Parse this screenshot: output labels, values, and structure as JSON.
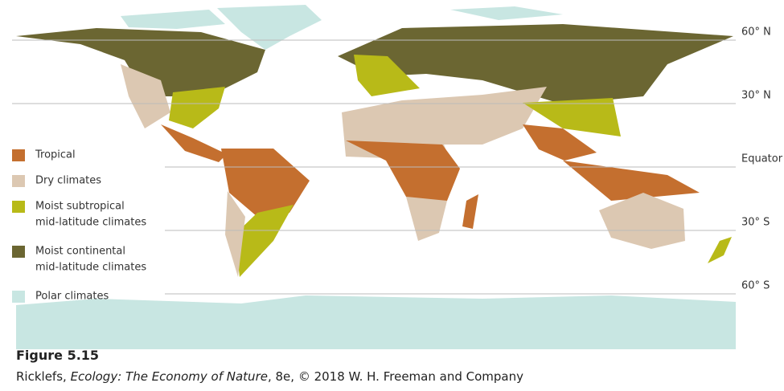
{
  "legend": [
    {
      "lines": [
        "Tropical"
      ],
      "color": "#c46f2f"
    },
    {
      "lines": [
        "Dry climates"
      ],
      "color": "#dcc8b2"
    },
    {
      "lines": [
        "Moist subtropical",
        "mid-latitude climates"
      ],
      "color": "#b8ba18"
    },
    {
      "lines": [
        "Moist continental",
        "mid-latitude climates"
      ],
      "color": "#6b6632"
    },
    {
      "lines": [
        "Polar climates"
      ],
      "color": "#c8e6e2"
    }
  ],
  "latitude_lines": [
    "60° N",
    "30° N",
    "Equator",
    "30° S",
    "60° S"
  ],
  "caption": {
    "figure": "Figure 5.15",
    "author": "Ricklefs, ",
    "book": "Ecology: The Economy of Nature",
    "rest": ", 8e, © 2018 W. H. Freeman and Company"
  }
}
